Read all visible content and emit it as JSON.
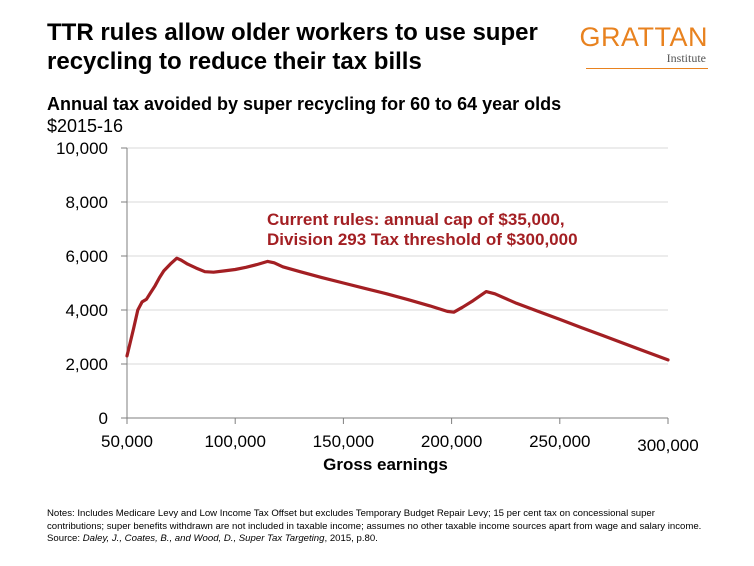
{
  "header": {
    "title": "TTR rules allow older workers to use super recycling to reduce their tax bills",
    "logo": {
      "name": "GRATTAN",
      "sub": "Institute"
    }
  },
  "colors": {
    "series": "#a31f23",
    "logo": "#e8821f",
    "grid": "#d9d9d9",
    "axis": "#7f7f7f"
  },
  "chart_data": {
    "type": "line",
    "title": "Annual tax avoided by super recycling for 60 to 64 year olds",
    "subtitle": "$2015-16",
    "xlabel": "Gross earnings",
    "ylabel": "",
    "xlim": [
      50000,
      300000
    ],
    "ylim": [
      0,
      10000
    ],
    "x_ticks": [
      50000,
      100000,
      150000,
      200000,
      250000,
      300000
    ],
    "x_tick_labels": [
      "50,000",
      "100,000",
      "150,000",
      "200,000",
      "250,000",
      "300,000"
    ],
    "y_ticks": [
      0,
      2000,
      4000,
      6000,
      8000,
      10000
    ],
    "y_tick_labels": [
      "0",
      "2,000",
      "4,000",
      "6,000",
      "8,000",
      "10,000"
    ],
    "grid": true,
    "annotation": [
      "Current rules: annual cap of $35,000,",
      "Division 293 Tax threshold of $300,000"
    ],
    "series": [
      {
        "x": [
          50000,
          53000,
          55000,
          57000,
          59000,
          61000,
          63000,
          65000,
          67000,
          70000,
          73000,
          75000,
          78000,
          82000,
          86000,
          90000,
          95000,
          100000,
          105000,
          110000,
          115000,
          118000,
          122000,
          130000,
          140000,
          150000,
          160000,
          170000,
          180000,
          190000,
          198000,
          201000,
          205000,
          210000,
          216000,
          220000,
          230000,
          240000,
          250000,
          260000,
          270000,
          280000,
          290000,
          300000
        ],
        "y": [
          2300,
          3300,
          4000,
          4300,
          4400,
          4650,
          4900,
          5200,
          5450,
          5700,
          5920,
          5850,
          5700,
          5550,
          5420,
          5400,
          5450,
          5500,
          5580,
          5680,
          5800,
          5750,
          5600,
          5420,
          5200,
          5000,
          4800,
          4600,
          4380,
          4150,
          3950,
          3920,
          4100,
          4350,
          4680,
          4600,
          4250,
          3950,
          3650,
          3350,
          3050,
          2750,
          2450,
          2150
        ]
      }
    ]
  },
  "footer": {
    "notes": "Notes: Includes Medicare Levy and Low Income Tax Offset but excludes Temporary Budget Repair Levy; 15 per cent tax on concessional super contributions; super benefits withdrawn are not included in taxable income; assumes no other taxable income sources apart from wage and salary income.",
    "source_prefix": "Source: ",
    "source_italic": "Daley, J., Coates, B., and Wood, D., Super Tax Targeting",
    "source_suffix": ", 2015, p.80."
  }
}
